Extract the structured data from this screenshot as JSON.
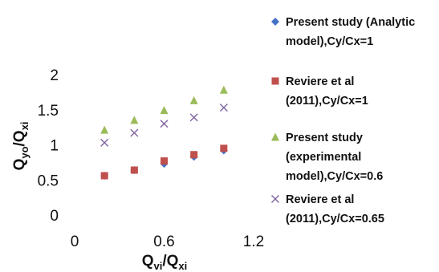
{
  "chart_data": {
    "type": "scatter",
    "title": "",
    "xlabel": {
      "main": "Q",
      "sub": "vi",
      "sep": "/",
      "main2": "Q",
      "sub2": "xi"
    },
    "ylabel": {
      "main": "Q",
      "sub": "yo",
      "sep": "/",
      "main2": "Q",
      "sub2": "xi"
    },
    "xlim": [
      0,
      1.2
    ],
    "ylim": [
      0,
      2
    ],
    "xticks": [
      {
        "value": 0,
        "label": "0"
      },
      {
        "value": 0.6,
        "label": "0.6"
      },
      {
        "value": 1.2,
        "label": "1.2"
      }
    ],
    "yticks": [
      {
        "value": 0,
        "label": "0"
      },
      {
        "value": 0.5,
        "label": "0.5"
      },
      {
        "value": 1,
        "label": "1"
      },
      {
        "value": 1.5,
        "label": "1.5"
      },
      {
        "value": 2,
        "label": "2"
      }
    ],
    "grid": false,
    "legend_position": "right",
    "series": [
      {
        "name": [
          "Present study (Analytic",
          "model),Cy/Cx=1"
        ],
        "marker": "diamond",
        "color": "#4472C4",
        "points": [
          [
            0.2,
            0.56
          ],
          [
            0.4,
            0.64
          ],
          [
            0.6,
            0.73
          ],
          [
            0.8,
            0.83
          ],
          [
            1.0,
            0.92
          ]
        ]
      },
      {
        "name": [
          "Reviere et al",
          "(2011),Cy/Cx=1"
        ],
        "marker": "square",
        "color": "#C0504D",
        "points": [
          [
            0.2,
            0.56
          ],
          [
            0.4,
            0.64
          ],
          [
            0.6,
            0.77
          ],
          [
            0.8,
            0.86
          ],
          [
            1.0,
            0.95
          ]
        ]
      },
      {
        "name": [
          "Present study",
          "(experimental",
          "model),Cy/Cx=0.6"
        ],
        "marker": "triangle",
        "color": "#9BBB59",
        "points": [
          [
            0.2,
            1.21
          ],
          [
            0.4,
            1.35
          ],
          [
            0.6,
            1.49
          ],
          [
            0.8,
            1.63
          ],
          [
            1.0,
            1.78
          ]
        ]
      },
      {
        "name": [
          "Reviere et al",
          "(2011),Cy/Cx=0.65"
        ],
        "marker": "x",
        "color": "#8064A2",
        "points": [
          [
            0.2,
            1.03
          ],
          [
            0.4,
            1.17
          ],
          [
            0.6,
            1.3
          ],
          [
            0.8,
            1.39
          ],
          [
            1.0,
            1.53
          ]
        ]
      }
    ]
  }
}
